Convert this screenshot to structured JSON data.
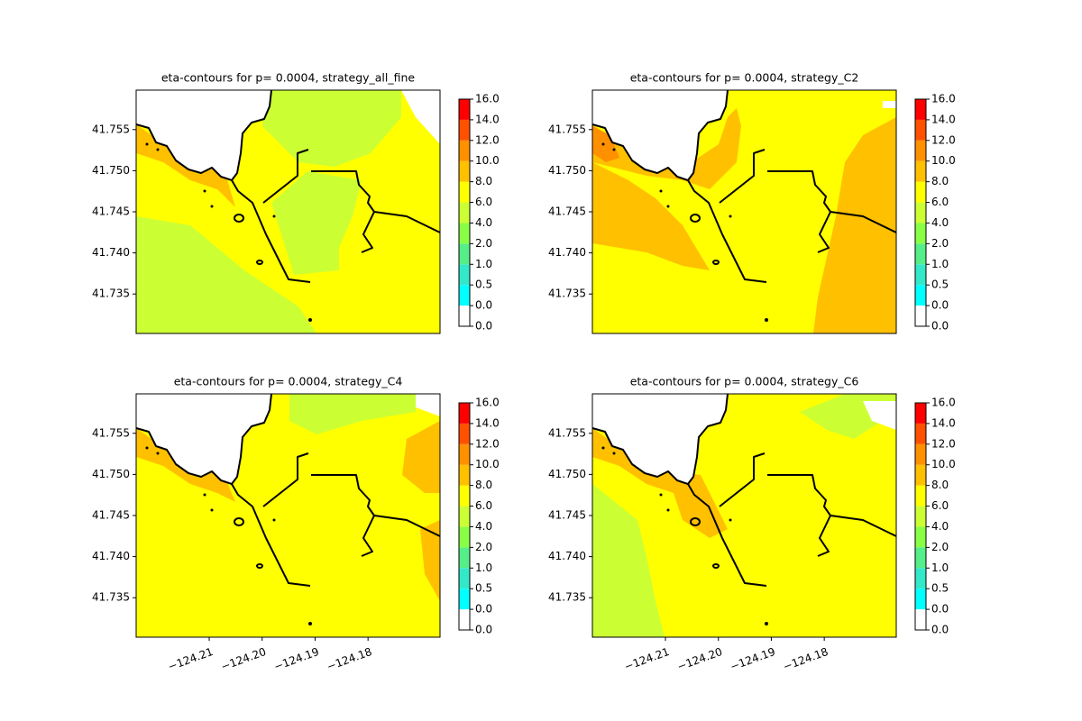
{
  "chart_data": [
    {
      "type": "contour",
      "title": "eta-contours for p= 0.0004, strategy_all_fine",
      "xlim": [
        -124.2238,
        -124.1664
      ],
      "ylim": [
        41.7302,
        41.7598
      ],
      "yticks": [
        41.735,
        {
          "value": 41.74,
          "label": "41.740"
        },
        41.745,
        {
          "value": 41.75,
          "label": "41.750"
        },
        41.755
      ],
      "colorbar": {
        "levels": [
          {
            "value": 0,
            "label": "0.0"
          },
          {
            "value": 0,
            "label": "0.0"
          },
          0.5,
          {
            "value": 1,
            "label": "1.0"
          },
          {
            "value": 2,
            "label": "2.0"
          },
          {
            "value": 4,
            "label": "4.0"
          },
          {
            "value": 6,
            "label": "6.0"
          },
          {
            "value": 8,
            "label": "8.0"
          },
          {
            "value": 10,
            "label": "10.0"
          },
          {
            "value": 12,
            "label": "12.0"
          },
          {
            "value": 14,
            "label": "14.0"
          },
          {
            "value": 16,
            "label": "16.0"
          }
        ],
        "colors": [
          "#ffffff",
          "#00ffff",
          "#33e8c8",
          "#55ee88",
          "#88ff44",
          "#ccff33",
          "#ffff00",
          "#ffc000",
          "#ff9000",
          "#ff5000",
          "#ff0000"
        ]
      }
    },
    {
      "type": "contour",
      "title": "eta-contours for p= 0.0004, strategy_C2",
      "xlim": [
        -124.2238,
        -124.1664
      ],
      "ylim": [
        41.7302,
        41.7598
      ],
      "yticks": [
        41.735,
        {
          "value": 41.74,
          "label": "41.740"
        },
        41.745,
        {
          "value": 41.75,
          "label": "41.750"
        },
        41.755
      ],
      "colorbar": {
        "levels": [
          {
            "value": 0,
            "label": "0.0"
          },
          {
            "value": 0,
            "label": "0.0"
          },
          0.5,
          {
            "value": 1,
            "label": "1.0"
          },
          {
            "value": 2,
            "label": "2.0"
          },
          {
            "value": 4,
            "label": "4.0"
          },
          {
            "value": 6,
            "label": "6.0"
          },
          {
            "value": 8,
            "label": "8.0"
          },
          {
            "value": 10,
            "label": "10.0"
          },
          {
            "value": 12,
            "label": "12.0"
          },
          {
            "value": 14,
            "label": "14.0"
          },
          {
            "value": 16,
            "label": "16.0"
          }
        ],
        "colors": [
          "#ffffff",
          "#00ffff",
          "#33e8c8",
          "#55ee88",
          "#88ff44",
          "#ccff33",
          "#ffff00",
          "#ffc000",
          "#ff9000",
          "#ff5000",
          "#ff0000"
        ]
      }
    },
    {
      "type": "contour",
      "title": "eta-contours for p= 0.0004, strategy_C4",
      "xlim": [
        -124.2238,
        -124.1664
      ],
      "ylim": [
        41.7302,
        41.7598
      ],
      "xticks": [
        {
          "value": -124.21,
          "label": "−124.21"
        },
        {
          "value": -124.2,
          "label": "−124.20"
        },
        {
          "value": -124.19,
          "label": "−124.19"
        },
        {
          "value": -124.18,
          "label": "−124.18"
        }
      ],
      "yticks": [
        41.735,
        {
          "value": 41.74,
          "label": "41.740"
        },
        41.745,
        {
          "value": 41.75,
          "label": "41.750"
        },
        41.755
      ],
      "colorbar": {
        "levels": [
          {
            "value": 0,
            "label": "0.0"
          },
          {
            "value": 0,
            "label": "0.0"
          },
          0.5,
          {
            "value": 1,
            "label": "1.0"
          },
          {
            "value": 2,
            "label": "2.0"
          },
          {
            "value": 4,
            "label": "4.0"
          },
          {
            "value": 6,
            "label": "6.0"
          },
          {
            "value": 8,
            "label": "8.0"
          },
          {
            "value": 10,
            "label": "10.0"
          },
          {
            "value": 12,
            "label": "12.0"
          },
          {
            "value": 14,
            "label": "14.0"
          },
          {
            "value": 16,
            "label": "16.0"
          }
        ],
        "colors": [
          "#ffffff",
          "#00ffff",
          "#33e8c8",
          "#55ee88",
          "#88ff44",
          "#ccff33",
          "#ffff00",
          "#ffc000",
          "#ff9000",
          "#ff5000",
          "#ff0000"
        ]
      }
    },
    {
      "type": "contour",
      "title": "eta-contours for p= 0.0004, strategy_C6",
      "xlim": [
        -124.2238,
        -124.1664
      ],
      "ylim": [
        41.7302,
        41.7598
      ],
      "xticks": [
        {
          "value": -124.21,
          "label": "−124.21"
        },
        {
          "value": -124.2,
          "label": "−124.20"
        },
        {
          "value": -124.19,
          "label": "−124.19"
        },
        {
          "value": -124.18,
          "label": "−124.18"
        }
      ],
      "yticks": [
        41.735,
        {
          "value": 41.74,
          "label": "41.740"
        },
        41.745,
        {
          "value": 41.75,
          "label": "41.750"
        },
        41.755
      ],
      "colorbar": {
        "levels": [
          {
            "value": 0,
            "label": "0.0"
          },
          {
            "value": 0,
            "label": "0.0"
          },
          0.5,
          {
            "value": 1,
            "label": "1.0"
          },
          {
            "value": 2,
            "label": "2.0"
          },
          {
            "value": 4,
            "label": "4.0"
          },
          {
            "value": 6,
            "label": "6.0"
          },
          {
            "value": 8,
            "label": "8.0"
          },
          {
            "value": 10,
            "label": "10.0"
          },
          {
            "value": 12,
            "label": "12.0"
          },
          {
            "value": 14,
            "label": "14.0"
          },
          {
            "value": 16,
            "label": "16.0"
          }
        ],
        "colors": [
          "#ffffff",
          "#00ffff",
          "#33e8c8",
          "#55ee88",
          "#88ff44",
          "#ccff33",
          "#ffff00",
          "#ffc000",
          "#ff9000",
          "#ff5000",
          "#ff0000"
        ]
      }
    }
  ]
}
